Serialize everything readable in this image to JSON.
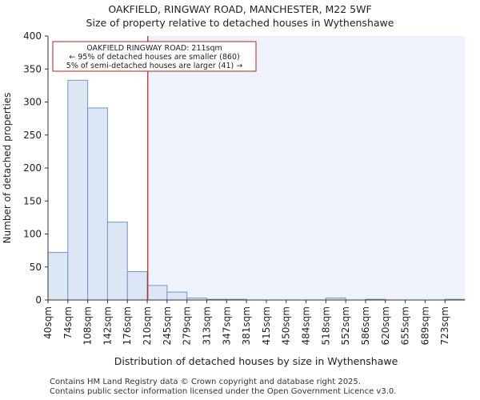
{
  "header": {
    "title": "OAKFIELD, RINGWAY ROAD, MANCHESTER, M22 5WF",
    "subtitle": "Size of property relative to detached houses in Wythenshawe"
  },
  "footer": {
    "line1": "Contains HM Land Registry data © Crown copyright and database right 2025.",
    "line2": "Contains public sector information licensed under the Open Government Licence v3.0."
  },
  "colors": {
    "bar_fill": "#dce6f5",
    "bar_stroke": "#6f97c8",
    "highlight_fill": "#eef2fb",
    "marker": "#b22222",
    "axis": "#333333"
  },
  "chart_data": {
    "type": "bar",
    "title": "OAKFIELD, RINGWAY ROAD, MANCHESTER, M22 5WF",
    "subtitle": "Size of property relative to detached houses in Wythenshawe",
    "xlabel": "Distribution of detached houses by size in Wythenshawe",
    "ylabel": "Number of detached properties",
    "categories": [
      "40sqm",
      "74sqm",
      "108sqm",
      "142sqm",
      "176sqm",
      "210sqm",
      "245sqm",
      "279sqm",
      "313sqm",
      "347sqm",
      "381sqm",
      "415sqm",
      "450sqm",
      "484sqm",
      "518sqm",
      "552sqm",
      "586sqm",
      "620sqm",
      "655sqm",
      "689sqm",
      "723sqm"
    ],
    "values": [
      72,
      333,
      291,
      118,
      43,
      22,
      12,
      3,
      1,
      1,
      0,
      0,
      0,
      0,
      3,
      0,
      1,
      0,
      0,
      0,
      1
    ],
    "ylim": [
      0,
      400
    ],
    "yticks": [
      0,
      50,
      100,
      150,
      200,
      250,
      300,
      350,
      400
    ],
    "marker": {
      "value": 211,
      "bin_index": 5,
      "label": "OAKFIELD RINGWAY ROAD: 211sqm",
      "line2": "← 95% of detached houses are smaller (860)",
      "line3": "5% of semi-detached houses are larger (41) →"
    },
    "grid": false
  }
}
